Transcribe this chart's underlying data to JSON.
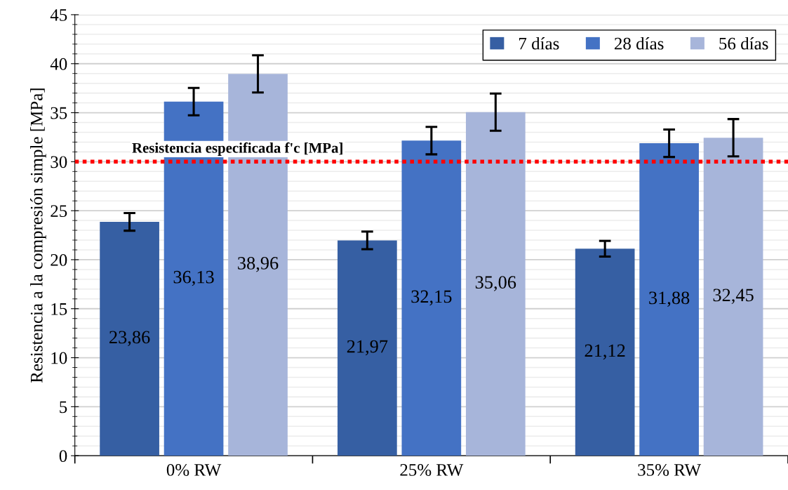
{
  "chart_data": {
    "type": "bar",
    "ylabel": "Resistencia a la compresión simple [MPa]",
    "categories": [
      "0% RW",
      "25% RW",
      "35% RW"
    ],
    "series": [
      {
        "name": "7 días",
        "color": "#365fa3",
        "values": [
          23.86,
          21.97,
          21.12
        ],
        "value_labels": [
          "23,86",
          "21,97",
          "21,12"
        ],
        "errors": [
          0.9,
          0.9,
          0.8
        ]
      },
      {
        "name": "28 días",
        "color": "#4472c4",
        "values": [
          36.13,
          32.15,
          31.88
        ],
        "value_labels": [
          "36,13",
          "32,15",
          "31,88"
        ],
        "errors": [
          1.4,
          1.4,
          1.4
        ]
      },
      {
        "name": "56 días",
        "color": "#a7b5da",
        "values": [
          38.96,
          35.06,
          32.45
        ],
        "value_labels": [
          "38,96",
          "35,06",
          "32,45"
        ],
        "errors": [
          1.9,
          1.9,
          1.9
        ]
      }
    ],
    "ylim": [
      0,
      45
    ],
    "yticks": [
      0,
      5,
      10,
      15,
      20,
      25,
      30,
      35,
      40,
      45
    ],
    "ref_lines": [
      {
        "axis": "y",
        "value": 30,
        "label": "Resistencia especificada f'c [MPa]",
        "color": "#ff0000",
        "line_style": "dotted"
      }
    ],
    "grid": "y",
    "legend": "top right"
  }
}
